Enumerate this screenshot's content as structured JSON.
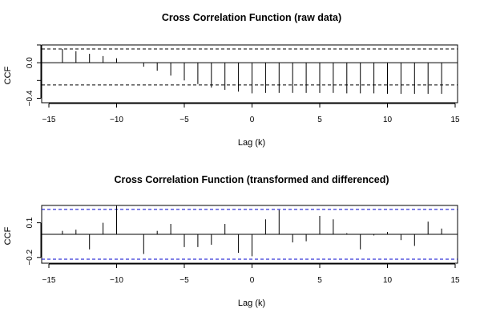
{
  "chart_data": [
    {
      "type": "bar",
      "title": "Cross Correlation Function (raw data)",
      "xlabel": "Lag (k)",
      "ylabel": "CCF",
      "xlim": [
        -15,
        15
      ],
      "ylim": [
        -0.45,
        0.2
      ],
      "x_ticks": [
        -15,
        -10,
        -5,
        0,
        5,
        10,
        15
      ],
      "x_tick_labels": [
        "−15",
        "−10",
        "−5",
        "0",
        "5",
        "10",
        "15"
      ],
      "y_ticks": [
        -0.4,
        -0.2,
        0.0,
        0.2
      ],
      "y_tick_labels": [
        "−0.4",
        "",
        "0.0",
        ""
      ],
      "confidence_band": [
        0.155,
        -0.25
      ],
      "band_color": "#000000",
      "lags": [
        -14,
        -13,
        -12,
        -11,
        -10,
        -9,
        -8,
        -7,
        -6,
        -5,
        -4,
        -3,
        -2,
        -1,
        0,
        1,
        2,
        3,
        4,
        5,
        6,
        7,
        8,
        9,
        10,
        11,
        12,
        13,
        14
      ],
      "values": [
        0.155,
        0.13,
        0.1,
        0.075,
        0.05,
        0.0,
        -0.045,
        -0.09,
        -0.145,
        -0.2,
        -0.24,
        -0.28,
        -0.305,
        -0.325,
        -0.345,
        -0.34,
        -0.34,
        -0.34,
        -0.34,
        -0.34,
        -0.34,
        -0.345,
        -0.345,
        -0.345,
        -0.35,
        -0.35,
        -0.35,
        -0.35,
        -0.35
      ],
      "grid": false
    },
    {
      "type": "bar",
      "title": "Cross Correlation Function (transformed and differenced)",
      "xlabel": "Lag (k)",
      "ylabel": "CCF",
      "xlim": [
        -15,
        15
      ],
      "ylim": [
        -0.25,
        0.25
      ],
      "x_ticks": [
        -15,
        -10,
        -5,
        0,
        5,
        10,
        15
      ],
      "x_tick_labels": [
        "−15",
        "−10",
        "−5",
        "0",
        "5",
        "10",
        "15"
      ],
      "y_ticks": [
        -0.2,
        0.1
      ],
      "y_tick_labels": [
        "−0.2",
        "0.1"
      ],
      "confidence_band": [
        0.215,
        -0.215
      ],
      "band_color": "#0000cc",
      "lags": [
        -14,
        -13,
        -12,
        -11,
        -10,
        -9,
        -8,
        -7,
        -6,
        -5,
        -4,
        -3,
        -2,
        -1,
        0,
        1,
        2,
        3,
        4,
        5,
        6,
        7,
        8,
        9,
        10,
        11,
        12,
        13,
        14
      ],
      "values": [
        0.03,
        0.04,
        -0.13,
        0.1,
        0.25,
        0.0,
        -0.17,
        0.03,
        0.09,
        -0.11,
        -0.11,
        -0.09,
        0.09,
        -0.16,
        -0.19,
        0.13,
        0.21,
        -0.07,
        -0.06,
        0.16,
        0.13,
        0.01,
        -0.13,
        -0.01,
        0.02,
        -0.05,
        -0.1,
        0.11,
        0.05
      ],
      "grid": false
    }
  ]
}
